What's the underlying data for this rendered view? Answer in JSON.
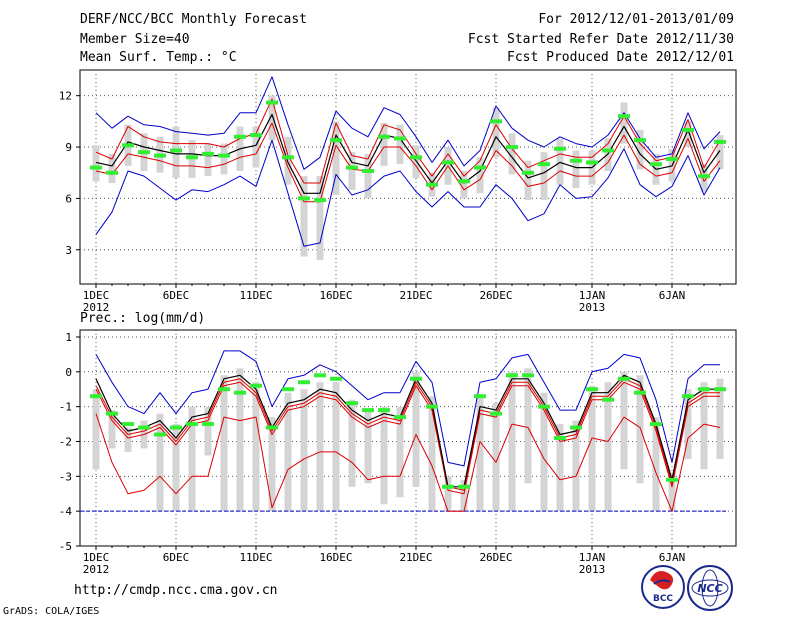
{
  "header": {
    "title": "DERF/NCC/BCC Monthly Forecast",
    "member_size": "Member Size=40",
    "variable": "Mean Surf. Temp.: °C",
    "period": "For 2012/12/01-2013/01/09",
    "started": "Fcst Started Refer Date 2012/11/30",
    "produced": "Fcst Produced Date 2012/12/01"
  },
  "footer": {
    "url": "http://cmdp.ncc.cma.gov.cn",
    "credit": "GrADS: COLA/IGES"
  },
  "logos": [
    {
      "name": "BCC",
      "label": "BCC"
    },
    {
      "name": "NCC",
      "label": "NCC"
    }
  ],
  "colors": {
    "ensemble_mean": "#000000",
    "spread_bounds": "#0000cc",
    "std_bounds": "#dd0000",
    "box": "#d4d4d4",
    "observed": "#33ee33",
    "baseline": "#0000cc"
  },
  "x_ticks": [
    {
      "day": 1,
      "label": "1DEC",
      "year": "2012"
    },
    {
      "day": 6,
      "label": "6DEC",
      "year": ""
    },
    {
      "day": 11,
      "label": "11DEC",
      "year": ""
    },
    {
      "day": 16,
      "label": "16DEC",
      "year": ""
    },
    {
      "day": 21,
      "label": "21DEC",
      "year": ""
    },
    {
      "day": 26,
      "label": "26DEC",
      "year": ""
    },
    {
      "day": 32,
      "label": "1JAN",
      "year": "2013"
    },
    {
      "day": 37,
      "label": "6JAN",
      "year": ""
    }
  ],
  "chart_data": [
    {
      "type": "line",
      "title": "Mean Surf. Temp.: °C",
      "x": [
        1,
        2,
        3,
        4,
        5,
        6,
        7,
        8,
        9,
        10,
        11,
        12,
        13,
        14,
        15,
        16,
        17,
        18,
        19,
        20,
        21,
        22,
        23,
        24,
        25,
        26,
        27,
        28,
        29,
        30,
        31,
        32,
        33,
        34,
        35,
        36,
        37,
        38,
        39,
        40
      ],
      "ylim": [
        1,
        13.5
      ],
      "yticks": [
        3,
        6,
        9,
        12
      ],
      "ytick_labels": [
        "3",
        "6",
        "9",
        "12"
      ],
      "series": [
        {
          "name": "ensemble-mean",
          "color": "#000000",
          "values": [
            8.1,
            7.9,
            9.3,
            9.0,
            8.8,
            8.6,
            8.6,
            8.5,
            8.5,
            8.9,
            9.1,
            10.9,
            8.1,
            6.3,
            6.3,
            9.7,
            8.1,
            7.9,
            9.7,
            9.5,
            8.2,
            6.9,
            8.2,
            6.9,
            7.6,
            9.6,
            8.4,
            7.2,
            7.5,
            8.1,
            7.8,
            7.8,
            8.6,
            10.2,
            8.6,
            7.7,
            7.9,
            10.0,
            7.5,
            8.8
          ]
        },
        {
          "name": "upper-spread",
          "color": "#0000cc",
          "values": [
            11.0,
            10.1,
            10.8,
            10.3,
            10.2,
            9.9,
            9.8,
            9.7,
            9.8,
            11.0,
            11.0,
            13.1,
            10.3,
            7.7,
            8.4,
            11.1,
            10.1,
            9.6,
            11.3,
            10.9,
            9.6,
            8.1,
            9.4,
            7.9,
            8.8,
            11.4,
            10.1,
            9.4,
            9.0,
            9.6,
            9.2,
            9.0,
            9.7,
            11.0,
            9.5,
            8.4,
            8.6,
            11.0,
            8.9,
            9.9
          ]
        },
        {
          "name": "lower-spread",
          "color": "#0000cc",
          "values": [
            3.9,
            5.2,
            7.6,
            7.3,
            6.6,
            5.9,
            6.5,
            6.4,
            6.8,
            7.3,
            6.7,
            9.4,
            6.3,
            3.2,
            3.4,
            7.4,
            6.2,
            6.5,
            7.3,
            7.6,
            6.4,
            5.5,
            6.4,
            5.5,
            5.5,
            6.8,
            6.0,
            4.7,
            5.1,
            6.8,
            6.0,
            6.1,
            7.2,
            8.9,
            6.8,
            6.1,
            6.7,
            8.5,
            6.2,
            7.8
          ]
        },
        {
          "name": "upper-std",
          "color": "#dd0000",
          "values": [
            8.7,
            8.3,
            10.2,
            9.6,
            9.3,
            9.2,
            9.2,
            9.2,
            9.0,
            9.5,
            9.8,
            11.8,
            8.5,
            6.9,
            6.9,
            10.4,
            8.5,
            8.3,
            10.3,
            10.0,
            8.6,
            7.3,
            8.6,
            7.3,
            8.2,
            10.3,
            8.9,
            7.8,
            8.2,
            8.6,
            8.4,
            8.4,
            9.2,
            10.8,
            9.2,
            8.2,
            8.4,
            10.6,
            7.8,
            9.4
          ]
        },
        {
          "name": "lower-std",
          "color": "#dd0000",
          "values": [
            7.6,
            7.4,
            8.6,
            8.4,
            8.2,
            7.9,
            7.9,
            7.8,
            8.0,
            8.4,
            8.6,
            10.4,
            7.8,
            5.8,
            5.8,
            9.1,
            7.7,
            7.6,
            9.0,
            9.0,
            7.9,
            6.5,
            7.9,
            6.5,
            7.1,
            8.8,
            7.9,
            6.7,
            6.9,
            7.6,
            7.3,
            7.3,
            8.1,
            9.7,
            8.0,
            7.3,
            7.5,
            9.5,
            7.0,
            8.2
          ]
        },
        {
          "name": "observed",
          "color": "#33ee33",
          "values": [
            7.8,
            7.5,
            9.1,
            8.7,
            8.5,
            8.8,
            8.4,
            8.6,
            8.5,
            9.6,
            9.7,
            11.6,
            8.4,
            6.0,
            5.9,
            9.4,
            7.8,
            7.6,
            9.6,
            9.5,
            8.4,
            6.8,
            8.1,
            7.0,
            7.8,
            10.5,
            9.0,
            7.5,
            8.0,
            8.9,
            8.2,
            8.1,
            8.8,
            10.8,
            9.4,
            8.0,
            8.3,
            10.0,
            7.3,
            9.3
          ]
        },
        {
          "name": "box-top",
          "color": "#d4d4d4",
          "values": [
            9.1,
            8.6,
            10.3,
            9.8,
            9.6,
            10.2,
            9.4,
            9.2,
            9.2,
            10.2,
            10.2,
            12.0,
            9.6,
            7.3,
            7.3,
            10.5,
            8.7,
            8.6,
            10.4,
            10.3,
            9.1,
            7.5,
            9.0,
            7.6,
            8.4,
            11.3,
            9.8,
            8.2,
            8.7,
            9.5,
            8.8,
            8.8,
            9.5,
            11.6,
            10.0,
            8.6,
            8.9,
            10.5,
            8.0,
            9.7
          ]
        },
        {
          "name": "box-bottom",
          "color": "#d4d4d4",
          "values": [
            7.0,
            6.9,
            7.9,
            7.6,
            7.5,
            7.2,
            7.2,
            7.3,
            7.4,
            7.6,
            7.8,
            9.4,
            6.8,
            2.6,
            2.4,
            6.2,
            6.5,
            6.0,
            7.9,
            8.0,
            7.2,
            6.1,
            6.8,
            6.0,
            6.3,
            8.4,
            7.4,
            5.9,
            5.9,
            6.8,
            6.6,
            6.8,
            7.6,
            9.2,
            7.7,
            6.8,
            7.0,
            9.0,
            6.4,
            7.7
          ]
        }
      ]
    },
    {
      "type": "line",
      "title": "Prec.: log(mm/d)",
      "x": [
        1,
        2,
        3,
        4,
        5,
        6,
        7,
        8,
        9,
        10,
        11,
        12,
        13,
        14,
        15,
        16,
        17,
        18,
        19,
        20,
        21,
        22,
        23,
        24,
        25,
        26,
        27,
        28,
        29,
        30,
        31,
        32,
        33,
        34,
        35,
        36,
        37,
        38,
        39,
        40
      ],
      "ylim": [
        -5,
        1.2
      ],
      "yticks": [
        -5,
        -4,
        -3,
        -2,
        -1,
        0,
        1
      ],
      "ytick_labels": [
        "-5",
        "-4",
        "-3",
        "-2",
        "-1",
        "0",
        "1"
      ],
      "baseline": -4,
      "series": [
        {
          "name": "ensemble-mean",
          "color": "#000000",
          "values": [
            -0.2,
            -1.2,
            -1.7,
            -1.6,
            -1.4,
            -1.9,
            -1.3,
            -1.2,
            -0.2,
            -0.1,
            -0.5,
            -1.6,
            -0.9,
            -0.8,
            -0.5,
            -0.6,
            -1.1,
            -1.4,
            -1.2,
            -1.3,
            -0.2,
            -0.9,
            -3.3,
            -3.3,
            -1.0,
            -1.1,
            -0.2,
            -0.2,
            -0.9,
            -1.8,
            -1.7,
            -0.6,
            -0.6,
            -0.1,
            -0.3,
            -1.5,
            -3.1,
            -0.8,
            -0.5,
            -0.5
          ]
        },
        {
          "name": "upper-spread",
          "color": "#0000cc",
          "values": [
            0.5,
            -0.3,
            -1.0,
            -1.2,
            -0.6,
            -1.2,
            -0.6,
            -0.5,
            0.6,
            0.6,
            0.3,
            -1.0,
            -0.2,
            -0.1,
            0.2,
            0.0,
            -0.4,
            -0.8,
            -0.6,
            -0.6,
            0.3,
            -0.3,
            -2.6,
            -2.7,
            -0.3,
            -0.2,
            0.4,
            0.5,
            -0.3,
            -1.1,
            -1.1,
            0.0,
            0.1,
            0.5,
            0.4,
            -0.8,
            -2.6,
            -0.2,
            0.2,
            0.2
          ]
        },
        {
          "name": "lower-spread",
          "color": "#dd0000",
          "values": [
            -1.2,
            -2.6,
            -3.5,
            -3.4,
            -3.0,
            -3.5,
            -3.0,
            -3.0,
            -1.3,
            -1.4,
            -1.3,
            -3.9,
            -2.8,
            -2.5,
            -2.3,
            -2.3,
            -2.6,
            -3.1,
            -3.0,
            -3.0,
            -1.8,
            -2.7,
            -4.0,
            -4.0,
            -2.0,
            -2.6,
            -1.5,
            -1.6,
            -2.5,
            -3.1,
            -3.0,
            -1.9,
            -2.0,
            -1.3,
            -1.6,
            -2.9,
            -4.0,
            -1.9,
            -1.5,
            -1.6
          ]
        },
        {
          "name": "upper-std",
          "color": "#dd0000",
          "values": [
            -0.4,
            -1.3,
            -1.8,
            -1.7,
            -1.5,
            -2.0,
            -1.4,
            -1.3,
            -0.3,
            -0.2,
            -0.6,
            -1.7,
            -1.0,
            -0.9,
            -0.6,
            -0.7,
            -1.2,
            -1.5,
            -1.3,
            -1.4,
            -0.3,
            -1.0,
            -3.3,
            -3.4,
            -1.1,
            -1.2,
            -0.3,
            -0.3,
            -1.0,
            -1.9,
            -1.8,
            -0.7,
            -0.7,
            -0.2,
            -0.4,
            -1.6,
            -3.2,
            -0.9,
            -0.6,
            -0.6
          ]
        },
        {
          "name": "lower-std",
          "color": "#dd0000",
          "values": [
            -0.5,
            -1.4,
            -1.9,
            -1.8,
            -1.6,
            -2.1,
            -1.5,
            -1.4,
            -0.4,
            -0.3,
            -0.7,
            -1.8,
            -1.1,
            -1.0,
            -0.7,
            -0.8,
            -1.3,
            -1.6,
            -1.4,
            -1.5,
            -0.4,
            -1.1,
            -3.4,
            -3.5,
            -1.2,
            -1.3,
            -0.4,
            -0.4,
            -1.1,
            -2.0,
            -1.9,
            -0.8,
            -0.8,
            -0.3,
            -0.5,
            -1.7,
            -3.3,
            -1.0,
            -0.7,
            -0.7
          ]
        },
        {
          "name": "observed",
          "color": "#33ee33",
          "values": [
            -0.7,
            -1.2,
            -1.5,
            -1.6,
            -1.8,
            -1.6,
            -1.5,
            -1.5,
            -0.5,
            -0.6,
            -0.4,
            -1.6,
            -0.5,
            -0.3,
            -0.1,
            -0.2,
            -0.9,
            -1.1,
            -1.1,
            -1.3,
            -0.2,
            -1.0,
            -3.3,
            -3.3,
            -0.7,
            -1.2,
            -0.1,
            -0.1,
            -1.0,
            -1.9,
            -1.6,
            -0.5,
            -0.8,
            -0.2,
            -0.6,
            -1.5,
            -3.1,
            -0.7,
            -0.5,
            -0.5
          ]
        },
        {
          "name": "box-top",
          "color": "#d4d4d4",
          "values": [
            -0.5,
            -1.1,
            -1.6,
            -1.4,
            -1.2,
            -1.5,
            -1.0,
            -1.0,
            -0.1,
            0.1,
            -0.3,
            -1.3,
            -0.6,
            -0.5,
            -0.3,
            -0.3,
            -0.8,
            -1.1,
            -1.0,
            -1.0,
            0.0,
            -0.7,
            -3.0,
            -3.1,
            -0.7,
            -0.9,
            0.0,
            0.1,
            -0.6,
            -1.5,
            -1.4,
            -0.4,
            -0.3,
            0.0,
            -0.1,
            -1.3,
            -2.9,
            -0.5,
            -0.3,
            -0.2
          ]
        },
        {
          "name": "box-bottom",
          "color": "#d4d4d4",
          "values": [
            -2.8,
            -2.2,
            -2.3,
            -2.2,
            -4.0,
            -4.0,
            -4.0,
            -2.4,
            -4.0,
            -4.0,
            -4.0,
            -4.0,
            -4.0,
            -4.0,
            -4.0,
            -4.0,
            -3.3,
            -3.2,
            -3.8,
            -3.6,
            -3.3,
            -4.0,
            -4.0,
            -4.0,
            -4.0,
            -4.0,
            -4.0,
            -3.2,
            -4.0,
            -4.0,
            -4.0,
            -4.0,
            -4.0,
            -2.8,
            -3.2,
            -4.0,
            -4.0,
            -2.5,
            -2.8,
            -2.5
          ]
        }
      ]
    }
  ]
}
